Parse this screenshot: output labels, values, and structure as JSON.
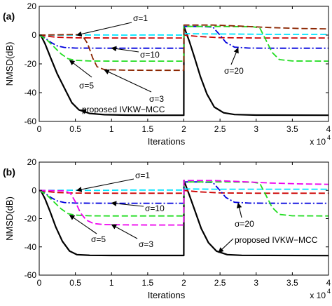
{
  "chart_data": [
    {
      "type": "line",
      "panel_label": "(a)",
      "xlabel": "Iterations",
      "ylabel": "NMSD(dB)",
      "x_multiplier_label": "x 10",
      "x_multiplier_exponent": "4",
      "xlim": [
        0,
        40000
      ],
      "ylim": [
        -60,
        20
      ],
      "xticks": [
        "0",
        "0.5",
        "1",
        "1.5",
        "2",
        "2.5",
        "3",
        "3.5",
        "4"
      ],
      "yticks": [
        "20",
        "0",
        "-20",
        "-40",
        "-60"
      ],
      "series": [
        {
          "color": "#000000",
          "dash": "solid",
          "width": 2.2,
          "points": [
            [
              0,
              0
            ],
            [
              300,
              -1
            ],
            [
              800,
              -6
            ],
            [
              1600,
              -16
            ],
            [
              2500,
              -27
            ],
            [
              3500,
              -37
            ],
            [
              4500,
              -47
            ],
            [
              5500,
              -52
            ],
            [
              7000,
              -54.5
            ],
            [
              9000,
              -55.3
            ],
            [
              12000,
              -55.6
            ],
            [
              15000,
              -55.7
            ],
            [
              19990,
              -55.7
            ],
            [
              20010,
              6
            ],
            [
              20300,
              2
            ],
            [
              20800,
              -5
            ],
            [
              21500,
              -16
            ],
            [
              22300,
              -29
            ],
            [
              23200,
              -41
            ],
            [
              24200,
              -50
            ],
            [
              25500,
              -54
            ],
            [
              27000,
              -55.2
            ],
            [
              30000,
              -55.6
            ],
            [
              40000,
              -55.7
            ]
          ]
        },
        {
          "color": "#00e5ff",
          "dash": "9 4",
          "width": 1.8,
          "points": [
            [
              0,
              0
            ],
            [
              4000,
              0
            ],
            [
              8000,
              0.1
            ],
            [
              12000,
              0
            ],
            [
              16000,
              0.1
            ],
            [
              19990,
              0
            ],
            [
              20010,
              1
            ],
            [
              24000,
              0.8
            ],
            [
              28000,
              0.7
            ],
            [
              32000,
              0.5
            ],
            [
              36000,
              0.5
            ],
            [
              40000,
              0.5
            ]
          ]
        },
        {
          "color": "#cc0000",
          "dash": "9 4",
          "width": 1.8,
          "points": [
            [
              0,
              0
            ],
            [
              1000,
              -0.8
            ],
            [
              2500,
              -1.5
            ],
            [
              5000,
              -1.9
            ],
            [
              10000,
              -2
            ],
            [
              19990,
              -2
            ],
            [
              20010,
              0
            ],
            [
              22000,
              -1
            ],
            [
              25000,
              -1.8
            ],
            [
              30000,
              -2
            ],
            [
              40000,
              -2
            ]
          ]
        },
        {
          "color": "#0000dd",
          "dash": "9 3 2 3",
          "width": 1.8,
          "points": [
            [
              0,
              0
            ],
            [
              800,
              -2
            ],
            [
              1600,
              -5
            ],
            [
              2500,
              -7.5
            ],
            [
              3500,
              -8.6
            ],
            [
              5000,
              -9
            ],
            [
              10000,
              -9.1
            ],
            [
              19990,
              -9.1
            ],
            [
              20010,
              6
            ],
            [
              22000,
              6
            ],
            [
              24000,
              5.6
            ],
            [
              25000,
              0
            ],
            [
              25800,
              -5
            ],
            [
              27000,
              -8.4
            ],
            [
              29000,
              -9
            ],
            [
              33000,
              -9.1
            ],
            [
              40000,
              -9.1
            ]
          ]
        },
        {
          "color": "#22dd22",
          "dash": "9 4",
          "width": 1.8,
          "points": [
            [
              0,
              0
            ],
            [
              1000,
              -3
            ],
            [
              2000,
              -8
            ],
            [
              3000,
              -13
            ],
            [
              4000,
              -16.5
            ],
            [
              5000,
              -17.5
            ],
            [
              7000,
              -18
            ],
            [
              10000,
              -18.1
            ],
            [
              19990,
              -18.1
            ],
            [
              20010,
              6
            ],
            [
              25000,
              6
            ],
            [
              29500,
              5.8
            ],
            [
              30500,
              5
            ],
            [
              31300,
              -3
            ],
            [
              32200,
              -12
            ],
            [
              33200,
              -17
            ],
            [
              35000,
              -18
            ],
            [
              40000,
              -18.1
            ]
          ]
        },
        {
          "color": "#8b2500",
          "dash": "9 4",
          "width": 1.8,
          "points": [
            [
              0,
              0
            ],
            [
              5000,
              0.4
            ],
            [
              6000,
              -0.5
            ],
            [
              6700,
              -6
            ],
            [
              7400,
              -16
            ],
            [
              8000,
              -22
            ],
            [
              9000,
              -24
            ],
            [
              12000,
              -24.4
            ],
            [
              16000,
              -24.5
            ],
            [
              19990,
              -24.5
            ],
            [
              20010,
              7
            ],
            [
              24000,
              7
            ],
            [
              28000,
              6.2
            ],
            [
              32000,
              5.2
            ],
            [
              36000,
              4.6
            ],
            [
              40000,
              4.3
            ]
          ]
        }
      ],
      "annotations": [
        {
          "text": "σ=1",
          "target": [
            5200,
            0
          ]
        },
        {
          "text": "σ=10",
          "target": [
            10000,
            -9
          ]
        },
        {
          "text": "σ=5",
          "target": [
            4200,
            -17.5
          ]
        },
        {
          "text": "σ=3",
          "target": [
            9000,
            -24.2
          ]
        },
        {
          "text": "σ=20",
          "target": [
            27500,
            -9
          ]
        },
        {
          "text": "proposed IVKW−MCC",
          "target": [
            5800,
            -52
          ]
        }
      ]
    },
    {
      "type": "line",
      "panel_label": "(b)",
      "xlabel": "Iterations",
      "ylabel": "NMSD(dB)",
      "x_multiplier_label": "x 10",
      "x_multiplier_exponent": "4",
      "xlim": [
        0,
        40000
      ],
      "ylim": [
        -60,
        20
      ],
      "xticks": [
        "0",
        "0.5",
        "1",
        "1.5",
        "2",
        "2.5",
        "3",
        "3.5",
        "4"
      ],
      "yticks": [
        "20",
        "0",
        "-20",
        "-40",
        "-60"
      ],
      "series": [
        {
          "color": "#000000",
          "dash": "solid",
          "width": 2.2,
          "points": [
            [
              0,
              0
            ],
            [
              300,
              -1
            ],
            [
              800,
              -6
            ],
            [
              1500,
              -15
            ],
            [
              2300,
              -26
            ],
            [
              3200,
              -36
            ],
            [
              4200,
              -43
            ],
            [
              5200,
              -45.5
            ],
            [
              7000,
              -46
            ],
            [
              10000,
              -46.1
            ],
            [
              19990,
              -46.1
            ],
            [
              20010,
              7
            ],
            [
              20300,
              3
            ],
            [
              20800,
              -4
            ],
            [
              21500,
              -14
            ],
            [
              22400,
              -27
            ],
            [
              23400,
              -37
            ],
            [
              24500,
              -43
            ],
            [
              26000,
              -45.5
            ],
            [
              28000,
              -46
            ],
            [
              40000,
              -46.2
            ]
          ]
        },
        {
          "color": "#00e5ff",
          "dash": "9 4",
          "width": 1.8,
          "points": [
            [
              0,
              0
            ],
            [
              4000,
              0.1
            ],
            [
              8000,
              0
            ],
            [
              12000,
              0.2
            ],
            [
              16000,
              0.2
            ],
            [
              19990,
              0.2
            ],
            [
              20010,
              1
            ],
            [
              24000,
              0.8
            ],
            [
              28000,
              0.8
            ],
            [
              32000,
              0.8
            ],
            [
              36000,
              0.8
            ],
            [
              40000,
              0.8
            ]
          ]
        },
        {
          "color": "#cc0000",
          "dash": "9 4",
          "width": 1.8,
          "points": [
            [
              0,
              0
            ],
            [
              1000,
              -0.8
            ],
            [
              2500,
              -1.5
            ],
            [
              5000,
              -1.9
            ],
            [
              10000,
              -2
            ],
            [
              19990,
              -2
            ],
            [
              20010,
              0
            ],
            [
              22000,
              -1
            ],
            [
              25000,
              -1.8
            ],
            [
              30000,
              -2
            ],
            [
              40000,
              -2
            ]
          ]
        },
        {
          "color": "#0000dd",
          "dash": "9 3 2 3",
          "width": 1.8,
          "points": [
            [
              0,
              0
            ],
            [
              800,
              -2
            ],
            [
              1600,
              -5
            ],
            [
              2500,
              -7.5
            ],
            [
              3500,
              -8.6
            ],
            [
              5000,
              -9
            ],
            [
              10000,
              -9.1
            ],
            [
              19990,
              -9.1
            ],
            [
              20010,
              6
            ],
            [
              22000,
              6
            ],
            [
              24000,
              5.6
            ],
            [
              25000,
              0
            ],
            [
              25800,
              -5
            ],
            [
              27000,
              -8.4
            ],
            [
              29000,
              -9
            ],
            [
              33000,
              -9.1
            ],
            [
              40000,
              -9.1
            ]
          ]
        },
        {
          "color": "#22dd22",
          "dash": "9 4",
          "width": 1.8,
          "points": [
            [
              0,
              0
            ],
            [
              1000,
              -3
            ],
            [
              2000,
              -8
            ],
            [
              3000,
              -13
            ],
            [
              4000,
              -16.5
            ],
            [
              5000,
              -17.5
            ],
            [
              7000,
              -18
            ],
            [
              10000,
              -18.1
            ],
            [
              19990,
              -18.1
            ],
            [
              20010,
              6
            ],
            [
              25000,
              6
            ],
            [
              29500,
              5.8
            ],
            [
              30500,
              5
            ],
            [
              31300,
              -3
            ],
            [
              32200,
              -12
            ],
            [
              33200,
              -17
            ],
            [
              35000,
              -18
            ],
            [
              40000,
              -18.1
            ]
          ]
        },
        {
          "color": "#ee00ee",
          "dash": "9 4",
          "width": 1.8,
          "points": [
            [
              0,
              0
            ],
            [
              3500,
              -0.3
            ],
            [
              4300,
              -2
            ],
            [
              5000,
              -8
            ],
            [
              5700,
              -16
            ],
            [
              6500,
              -21
            ],
            [
              7500,
              -23.5
            ],
            [
              9000,
              -24.2
            ],
            [
              12000,
              -24.4
            ],
            [
              16000,
              -24.5
            ],
            [
              19990,
              -24.5
            ],
            [
              20010,
              7
            ],
            [
              24000,
              7
            ],
            [
              28000,
              6.2
            ],
            [
              32000,
              5.2
            ],
            [
              36000,
              4.6
            ],
            [
              40000,
              4.3
            ]
          ]
        }
      ],
      "annotations": [
        {
          "text": "σ=1",
          "target": [
            5200,
            0
          ]
        },
        {
          "text": "σ=10",
          "target": [
            10000,
            -9
          ]
        },
        {
          "text": "σ=5",
          "target": [
            4200,
            -17.5
          ]
        },
        {
          "text": "σ=3",
          "target": [
            10000,
            -24.2
          ]
        },
        {
          "text": "σ=20",
          "target": [
            27500,
            -9
          ]
        },
        {
          "text": "proposed IVKW−MCC",
          "target": [
            24800,
            -44
          ]
        }
      ]
    }
  ]
}
